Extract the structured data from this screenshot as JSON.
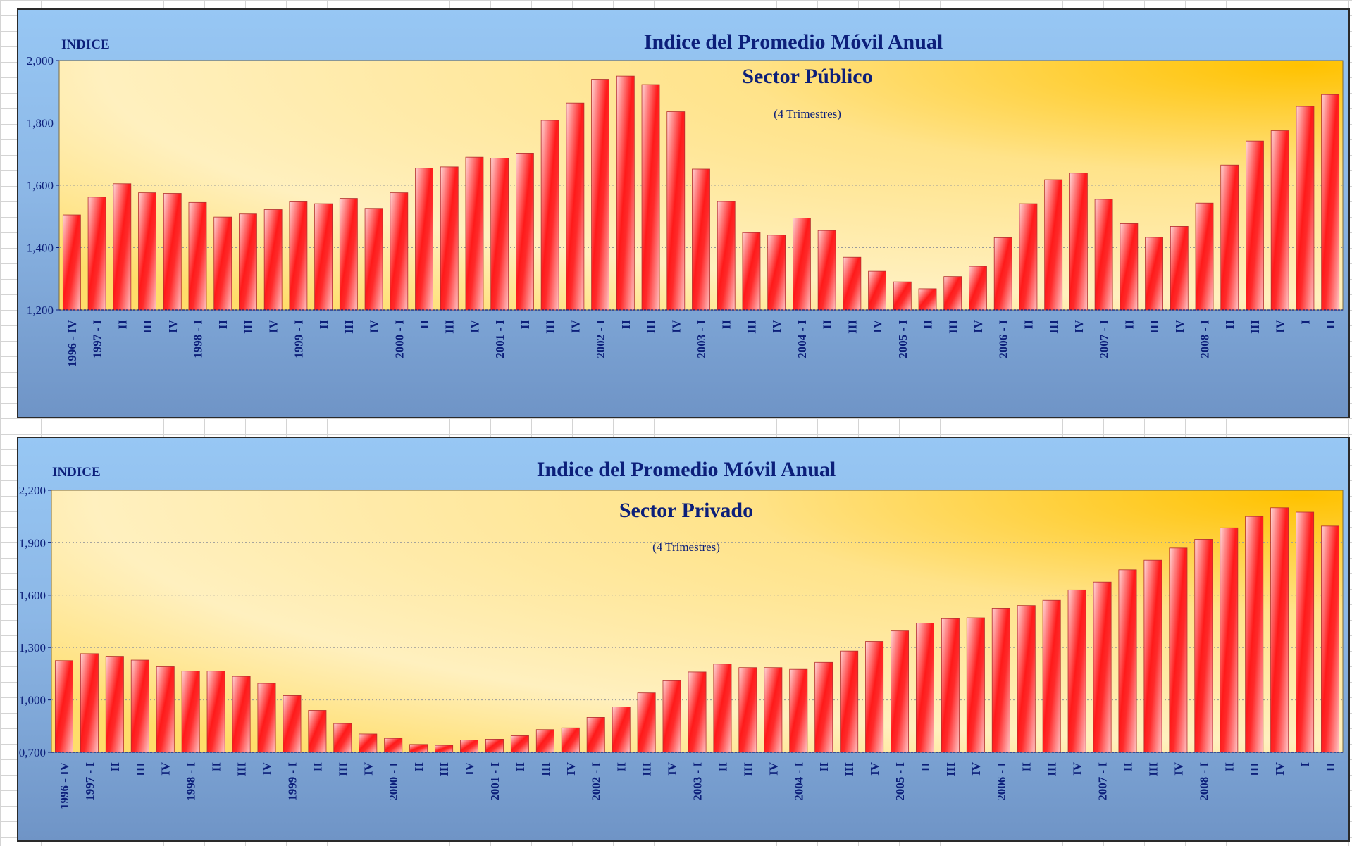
{
  "chart_data": [
    {
      "type": "bar",
      "title": "Indice del Promedio Móvil Anual",
      "subtitle": "Sector Público",
      "note": "(4 Trimestres)",
      "ylabel": "INDICE",
      "ylim": [
        1200,
        2000
      ],
      "yticks": [
        "1,200",
        "1,400",
        "1,600",
        "1,800",
        "2,000"
      ],
      "grid": true,
      "categories": [
        "1996 - IV",
        "1997 - I",
        "II",
        "III",
        "IV",
        "1998 - I",
        "II",
        "III",
        "IV",
        "1999 - I",
        "II",
        "III",
        "IV",
        "2000 - I",
        "II",
        "III",
        "IV",
        "2001 - I",
        "II",
        "III",
        "IV",
        "2002 - I",
        "II",
        "III",
        "IV",
        "2003 - I",
        "II",
        "III",
        "IV",
        "2004 - I",
        "II",
        "III",
        "IV",
        "2005 - I",
        "II",
        "III",
        "IV",
        "2006 - I",
        "II",
        "III",
        "IV",
        "2007 - I",
        "II",
        "III",
        "IV",
        "2008 - I",
        "II",
        "III",
        "IV",
        "I",
        "II"
      ],
      "values": [
        1505,
        1562,
        1605,
        1576,
        1574,
        1545,
        1498,
        1508,
        1522,
        1547,
        1541,
        1558,
        1526,
        1576,
        1655,
        1659,
        1690,
        1687,
        1703,
        1808,
        1864,
        1940,
        1950,
        1923,
        1836,
        1652,
        1548,
        1448,
        1440,
        1495,
        1455,
        1369,
        1324,
        1290,
        1268,
        1307,
        1340,
        1432,
        1541,
        1618,
        1639,
        1555,
        1477,
        1433,
        1468,
        1543,
        1665,
        1742,
        1775,
        1853,
        1891
      ]
    },
    {
      "type": "bar",
      "title": "Indice del Promedio Móvil Anual",
      "subtitle": "Sector Privado",
      "note": "(4 Trimestres)",
      "ylabel": "INDICE",
      "ylim": [
        700,
        2200
      ],
      "yticks": [
        "0,700",
        "1,000",
        "1,300",
        "1,600",
        "1,900",
        "2,200"
      ],
      "grid": true,
      "categories": [
        "1996 - IV",
        "1997 - I",
        "II",
        "III",
        "IV",
        "1998 - I",
        "II",
        "III",
        "IV",
        "1999 - I",
        "II",
        "III",
        "IV",
        "2000 - I",
        "II",
        "III",
        "IV",
        "2001 - I",
        "II",
        "III",
        "IV",
        "2002 - I",
        "II",
        "III",
        "IV",
        "2003 - I",
        "II",
        "III",
        "IV",
        "2004 - I",
        "II",
        "III",
        "IV",
        "2005 - I",
        "II",
        "III",
        "IV",
        "2006 - I",
        "II",
        "III",
        "IV",
        "2007 - I",
        "II",
        "III",
        "IV",
        "2008 - I",
        "II",
        "III",
        "IV",
        "I",
        "II"
      ],
      "values": [
        1225,
        1265,
        1250,
        1228,
        1190,
        1165,
        1165,
        1135,
        1095,
        1025,
        940,
        865,
        805,
        780,
        745,
        740,
        770,
        775,
        795,
        830,
        840,
        900,
        960,
        1040,
        1110,
        1160,
        1205,
        1185,
        1185,
        1175,
        1215,
        1280,
        1335,
        1395,
        1440,
        1465,
        1470,
        1525,
        1540,
        1570,
        1630,
        1675,
        1745,
        1800,
        1870,
        1920,
        1985,
        2050,
        2100,
        2075,
        1995
      ]
    }
  ]
}
